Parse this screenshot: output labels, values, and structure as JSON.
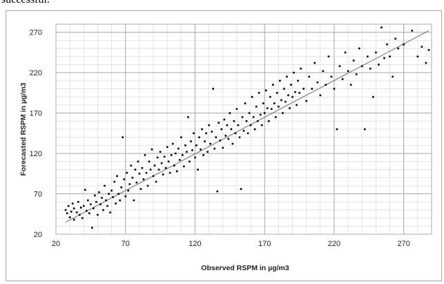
{
  "header_text": "successful.",
  "chart_data": {
    "type": "scatter",
    "title": "",
    "xlabel": "Observed RSPM in µg/m3",
    "ylabel": "Forecasted RSPM in µg/m3",
    "xlim": [
      20,
      290
    ],
    "ylim": [
      20,
      280
    ],
    "x_ticks": [
      20,
      70,
      120,
      170,
      220,
      270
    ],
    "y_ticks": [
      20,
      70,
      120,
      170,
      220,
      270
    ],
    "grid": "major and minor",
    "marker_color": "#000000",
    "trendline": {
      "x": [
        27,
        288
      ],
      "y": [
        35,
        272
      ],
      "color": "#808080"
    },
    "series": [
      {
        "points": [
          [
            27,
            50
          ],
          [
            28,
            46
          ],
          [
            29,
            55
          ],
          [
            30,
            41
          ],
          [
            31,
            48
          ],
          [
            32,
            58
          ],
          [
            33,
            52
          ],
          [
            33,
            38
          ],
          [
            35,
            47
          ],
          [
            36,
            60
          ],
          [
            37,
            44
          ],
          [
            38,
            53
          ],
          [
            39,
            40
          ],
          [
            40,
            55
          ],
          [
            41,
            75
          ],
          [
            42,
            49
          ],
          [
            43,
            62
          ],
          [
            44,
            46
          ],
          [
            45,
            57
          ],
          [
            46,
            28
          ],
          [
            47,
            52
          ],
          [
            48,
            68
          ],
          [
            49,
            60
          ],
          [
            50,
            44
          ],
          [
            51,
            72
          ],
          [
            52,
            57
          ],
          [
            53,
            65
          ],
          [
            54,
            50
          ],
          [
            55,
            80
          ],
          [
            56,
            62
          ],
          [
            57,
            55
          ],
          [
            58,
            70
          ],
          [
            59,
            47
          ],
          [
            60,
            74
          ],
          [
            61,
            66
          ],
          [
            62,
            85
          ],
          [
            63,
            58
          ],
          [
            64,
            92
          ],
          [
            65,
            70
          ],
          [
            66,
            62
          ],
          [
            67,
            78
          ],
          [
            68,
            140
          ],
          [
            69,
            88
          ],
          [
            70,
            67
          ],
          [
            71,
            96
          ],
          [
            72,
            74
          ],
          [
            73,
            82
          ],
          [
            74,
            105
          ],
          [
            75,
            90
          ],
          [
            76,
            62
          ],
          [
            77,
            100
          ],
          [
            78,
            84
          ],
          [
            79,
            110
          ],
          [
            80,
            95
          ],
          [
            81,
            76
          ],
          [
            82,
            102
          ],
          [
            83,
            88
          ],
          [
            84,
            118
          ],
          [
            85,
            96
          ],
          [
            86,
            80
          ],
          [
            87,
            110
          ],
          [
            88,
            100
          ],
          [
            89,
            125
          ],
          [
            90,
            92
          ],
          [
            91,
            105
          ],
          [
            92,
            85
          ],
          [
            93,
            115
          ],
          [
            94,
            100
          ],
          [
            95,
            122
          ],
          [
            96,
            108
          ],
          [
            97,
            94
          ],
          [
            98,
            116
          ],
          [
            99,
            102
          ],
          [
            100,
            128
          ],
          [
            101,
            110
          ],
          [
            102,
            96
          ],
          [
            103,
            118
          ],
          [
            104,
            132
          ],
          [
            105,
            105
          ],
          [
            106,
            120
          ],
          [
            107,
            98
          ],
          [
            108,
            126
          ],
          [
            109,
            112
          ],
          [
            110,
            140
          ],
          [
            111,
            118
          ],
          [
            112,
            104
          ],
          [
            113,
            130
          ],
          [
            114,
            122
          ],
          [
            115,
            165
          ],
          [
            116,
            110
          ],
          [
            117,
            135
          ],
          [
            118,
            124
          ],
          [
            119,
            145
          ],
          [
            120,
            115
          ],
          [
            121,
            130
          ],
          [
            122,
            100
          ],
          [
            123,
            140
          ],
          [
            124,
            125
          ],
          [
            125,
            150
          ],
          [
            126,
            118
          ],
          [
            127,
            135
          ],
          [
            128,
            145
          ],
          [
            129,
            122
          ],
          [
            130,
            155
          ],
          [
            131,
            132
          ],
          [
            132,
            147
          ],
          [
            133,
            200
          ],
          [
            134,
            126
          ],
          [
            135,
            140
          ],
          [
            136,
            73
          ],
          [
            137,
            158
          ],
          [
            138,
            136
          ],
          [
            139,
            150
          ],
          [
            140,
            127
          ],
          [
            141,
            162
          ],
          [
            142,
            142
          ],
          [
            143,
            155
          ],
          [
            144,
            138
          ],
          [
            145,
            170
          ],
          [
            146,
            150
          ],
          [
            147,
            132
          ],
          [
            148,
            160
          ],
          [
            149,
            145
          ],
          [
            150,
            175
          ],
          [
            151,
            155
          ],
          [
            152,
            140
          ],
          [
            153,
            76
          ],
          [
            154,
            165
          ],
          [
            155,
            148
          ],
          [
            156,
            182
          ],
          [
            157,
            160
          ],
          [
            158,
            145
          ],
          [
            159,
            170
          ],
          [
            160,
            155
          ],
          [
            161,
            190
          ],
          [
            162,
            165
          ],
          [
            163,
            150
          ],
          [
            164,
            178
          ],
          [
            165,
            160
          ],
          [
            166,
            195
          ],
          [
            167,
            168
          ],
          [
            168,
            155
          ],
          [
            169,
            182
          ],
          [
            170,
            170
          ],
          [
            171,
            198
          ],
          [
            172,
            176
          ],
          [
            173,
            160
          ],
          [
            174,
            190
          ],
          [
            175,
            175
          ],
          [
            176,
            205
          ],
          [
            177,
            182
          ],
          [
            178,
            165
          ],
          [
            179,
            195
          ],
          [
            180,
            178
          ],
          [
            181,
            210
          ],
          [
            182,
            186
          ],
          [
            183,
            170
          ],
          [
            184,
            200
          ],
          [
            185,
            184
          ],
          [
            186,
            215
          ],
          [
            187,
            192
          ],
          [
            188,
            176
          ],
          [
            189,
            205
          ],
          [
            190,
            190
          ],
          [
            191,
            220
          ],
          [
            192,
            196
          ],
          [
            193,
            180
          ],
          [
            194,
            210
          ],
          [
            195,
            195
          ],
          [
            196,
            225
          ],
          [
            198,
            200
          ],
          [
            200,
            185
          ],
          [
            202,
            215
          ],
          [
            204,
            200
          ],
          [
            206,
            232
          ],
          [
            208,
            208
          ],
          [
            210,
            192
          ],
          [
            212,
            222
          ],
          [
            214,
            205
          ],
          [
            216,
            240
          ],
          [
            218,
            215
          ],
          [
            220,
            200
          ],
          [
            222,
            150
          ],
          [
            224,
            228
          ],
          [
            226,
            212
          ],
          [
            228,
            245
          ],
          [
            230,
            222
          ],
          [
            232,
            205
          ],
          [
            234,
            235
          ],
          [
            236,
            218
          ],
          [
            238,
            250
          ],
          [
            240,
            228
          ],
          [
            242,
            150
          ],
          [
            244,
            240
          ],
          [
            246,
            225
          ],
          [
            248,
            190
          ],
          [
            250,
            245
          ],
          [
            252,
            230
          ],
          [
            254,
            276
          ],
          [
            256,
            238
          ],
          [
            258,
            255
          ],
          [
            260,
            240
          ],
          [
            262,
            215
          ],
          [
            264,
            262
          ],
          [
            266,
            250
          ],
          [
            270,
            255
          ],
          [
            276,
            272
          ],
          [
            280,
            240
          ],
          [
            283,
            252
          ],
          [
            286,
            232
          ],
          [
            288,
            248
          ]
        ]
      }
    ]
  }
}
